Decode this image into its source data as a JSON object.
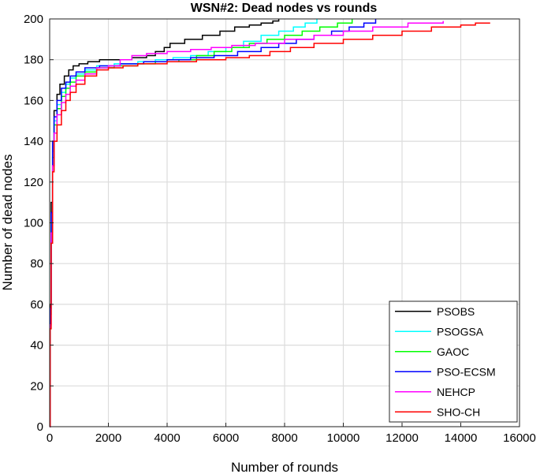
{
  "chart_data": {
    "type": "line",
    "title": "WSN#2: Dead nodes vs rounds",
    "xlabel": "Number of rounds",
    "ylabel": "Number of dead nodes",
    "xlim": [
      0,
      16000
    ],
    "ylim": [
      0,
      200
    ],
    "xticks": [
      0,
      2000,
      4000,
      6000,
      8000,
      10000,
      12000,
      14000,
      16000
    ],
    "yticks": [
      0,
      20,
      40,
      60,
      80,
      100,
      120,
      140,
      160,
      180,
      200
    ],
    "grid": true,
    "legend_position": "bottom-right",
    "series": [
      {
        "name": "PSOBS",
        "color": "#000000",
        "points": [
          [
            0,
            0
          ],
          [
            20,
            60
          ],
          [
            50,
            110
          ],
          [
            100,
            140
          ],
          [
            150,
            155
          ],
          [
            250,
            163
          ],
          [
            350,
            168
          ],
          [
            500,
            172
          ],
          [
            650,
            175
          ],
          [
            800,
            177
          ],
          [
            1000,
            178
          ],
          [
            1300,
            179
          ],
          [
            1700,
            180
          ],
          [
            2200,
            180
          ],
          [
            2800,
            181
          ],
          [
            3300,
            182
          ],
          [
            3600,
            184
          ],
          [
            3900,
            186
          ],
          [
            4100,
            188
          ],
          [
            4600,
            190
          ],
          [
            5200,
            192
          ],
          [
            5800,
            194
          ],
          [
            6300,
            196
          ],
          [
            6800,
            197
          ],
          [
            7200,
            198
          ],
          [
            7600,
            199
          ],
          [
            7800,
            200
          ]
        ]
      },
      {
        "name": "PSOGSA",
        "color": "#00ffff",
        "points": [
          [
            0,
            0
          ],
          [
            20,
            55
          ],
          [
            50,
            100
          ],
          [
            100,
            135
          ],
          [
            150,
            150
          ],
          [
            250,
            158
          ],
          [
            400,
            164
          ],
          [
            550,
            168
          ],
          [
            700,
            171
          ],
          [
            900,
            173
          ],
          [
            1200,
            175
          ],
          [
            1600,
            177
          ],
          [
            2200,
            178
          ],
          [
            3000,
            179
          ],
          [
            3600,
            180
          ],
          [
            4200,
            181
          ],
          [
            4800,
            182
          ],
          [
            5400,
            184
          ],
          [
            6000,
            186
          ],
          [
            6600,
            189
          ],
          [
            7200,
            192
          ],
          [
            7800,
            194
          ],
          [
            8300,
            196
          ],
          [
            8700,
            198
          ],
          [
            9100,
            200
          ]
        ]
      },
      {
        "name": "GAOC",
        "color": "#00ff00",
        "points": [
          [
            0,
            0
          ],
          [
            20,
            55
          ],
          [
            50,
            100
          ],
          [
            100,
            132
          ],
          [
            150,
            148
          ],
          [
            250,
            156
          ],
          [
            400,
            162
          ],
          [
            550,
            166
          ],
          [
            700,
            169
          ],
          [
            900,
            172
          ],
          [
            1200,
            174
          ],
          [
            1600,
            176
          ],
          [
            2200,
            177
          ],
          [
            3000,
            178
          ],
          [
            3600,
            179
          ],
          [
            4400,
            180
          ],
          [
            5000,
            182
          ],
          [
            5600,
            184
          ],
          [
            6200,
            186
          ],
          [
            6800,
            188
          ],
          [
            7400,
            190
          ],
          [
            8000,
            192
          ],
          [
            8600,
            194
          ],
          [
            9200,
            196
          ],
          [
            9800,
            198
          ],
          [
            10300,
            200
          ]
        ]
      },
      {
        "name": "PSO-ECSM",
        "color": "#0000ff",
        "points": [
          [
            0,
            0
          ],
          [
            20,
            58
          ],
          [
            50,
            105
          ],
          [
            100,
            140
          ],
          [
            150,
            152
          ],
          [
            250,
            160
          ],
          [
            400,
            166
          ],
          [
            550,
            169
          ],
          [
            700,
            172
          ],
          [
            900,
            174
          ],
          [
            1200,
            176
          ],
          [
            1700,
            177
          ],
          [
            2400,
            178
          ],
          [
            3200,
            179
          ],
          [
            4000,
            180
          ],
          [
            4800,
            181
          ],
          [
            5600,
            182
          ],
          [
            6400,
            184
          ],
          [
            7200,
            186
          ],
          [
            7800,
            188
          ],
          [
            8400,
            190
          ],
          [
            9000,
            192
          ],
          [
            9600,
            194
          ],
          [
            10200,
            196
          ],
          [
            10700,
            198
          ],
          [
            11100,
            200
          ]
        ]
      },
      {
        "name": "NEHCP",
        "color": "#ff00ff",
        "points": [
          [
            0,
            0
          ],
          [
            20,
            50
          ],
          [
            50,
            95
          ],
          [
            100,
            128
          ],
          [
            150,
            144
          ],
          [
            250,
            153
          ],
          [
            400,
            159
          ],
          [
            550,
            163
          ],
          [
            700,
            167
          ],
          [
            900,
            170
          ],
          [
            1200,
            173
          ],
          [
            1600,
            176
          ],
          [
            2000,
            177
          ],
          [
            2400,
            180
          ],
          [
            2800,
            182
          ],
          [
            3300,
            183
          ],
          [
            4000,
            184
          ],
          [
            4800,
            185
          ],
          [
            5500,
            186
          ],
          [
            6200,
            187
          ],
          [
            7000,
            188
          ],
          [
            8000,
            190
          ],
          [
            9000,
            192
          ],
          [
            10000,
            194
          ],
          [
            11000,
            196
          ],
          [
            12200,
            198
          ],
          [
            13400,
            199
          ]
        ]
      },
      {
        "name": "SHO-CH",
        "color": "#ff0000",
        "points": [
          [
            0,
            0
          ],
          [
            20,
            48
          ],
          [
            50,
            90
          ],
          [
            100,
            125
          ],
          [
            150,
            140
          ],
          [
            250,
            148
          ],
          [
            400,
            155
          ],
          [
            550,
            160
          ],
          [
            700,
            164
          ],
          [
            900,
            168
          ],
          [
            1200,
            172
          ],
          [
            1600,
            175
          ],
          [
            2000,
            176
          ],
          [
            2500,
            177
          ],
          [
            3000,
            178
          ],
          [
            4000,
            179
          ],
          [
            5000,
            180
          ],
          [
            6000,
            181
          ],
          [
            6800,
            182
          ],
          [
            7500,
            184
          ],
          [
            8200,
            186
          ],
          [
            9000,
            188
          ],
          [
            10000,
            190
          ],
          [
            11000,
            192
          ],
          [
            12000,
            194
          ],
          [
            13000,
            196
          ],
          [
            14000,
            197
          ],
          [
            14500,
            198
          ],
          [
            15000,
            198
          ]
        ]
      }
    ]
  }
}
